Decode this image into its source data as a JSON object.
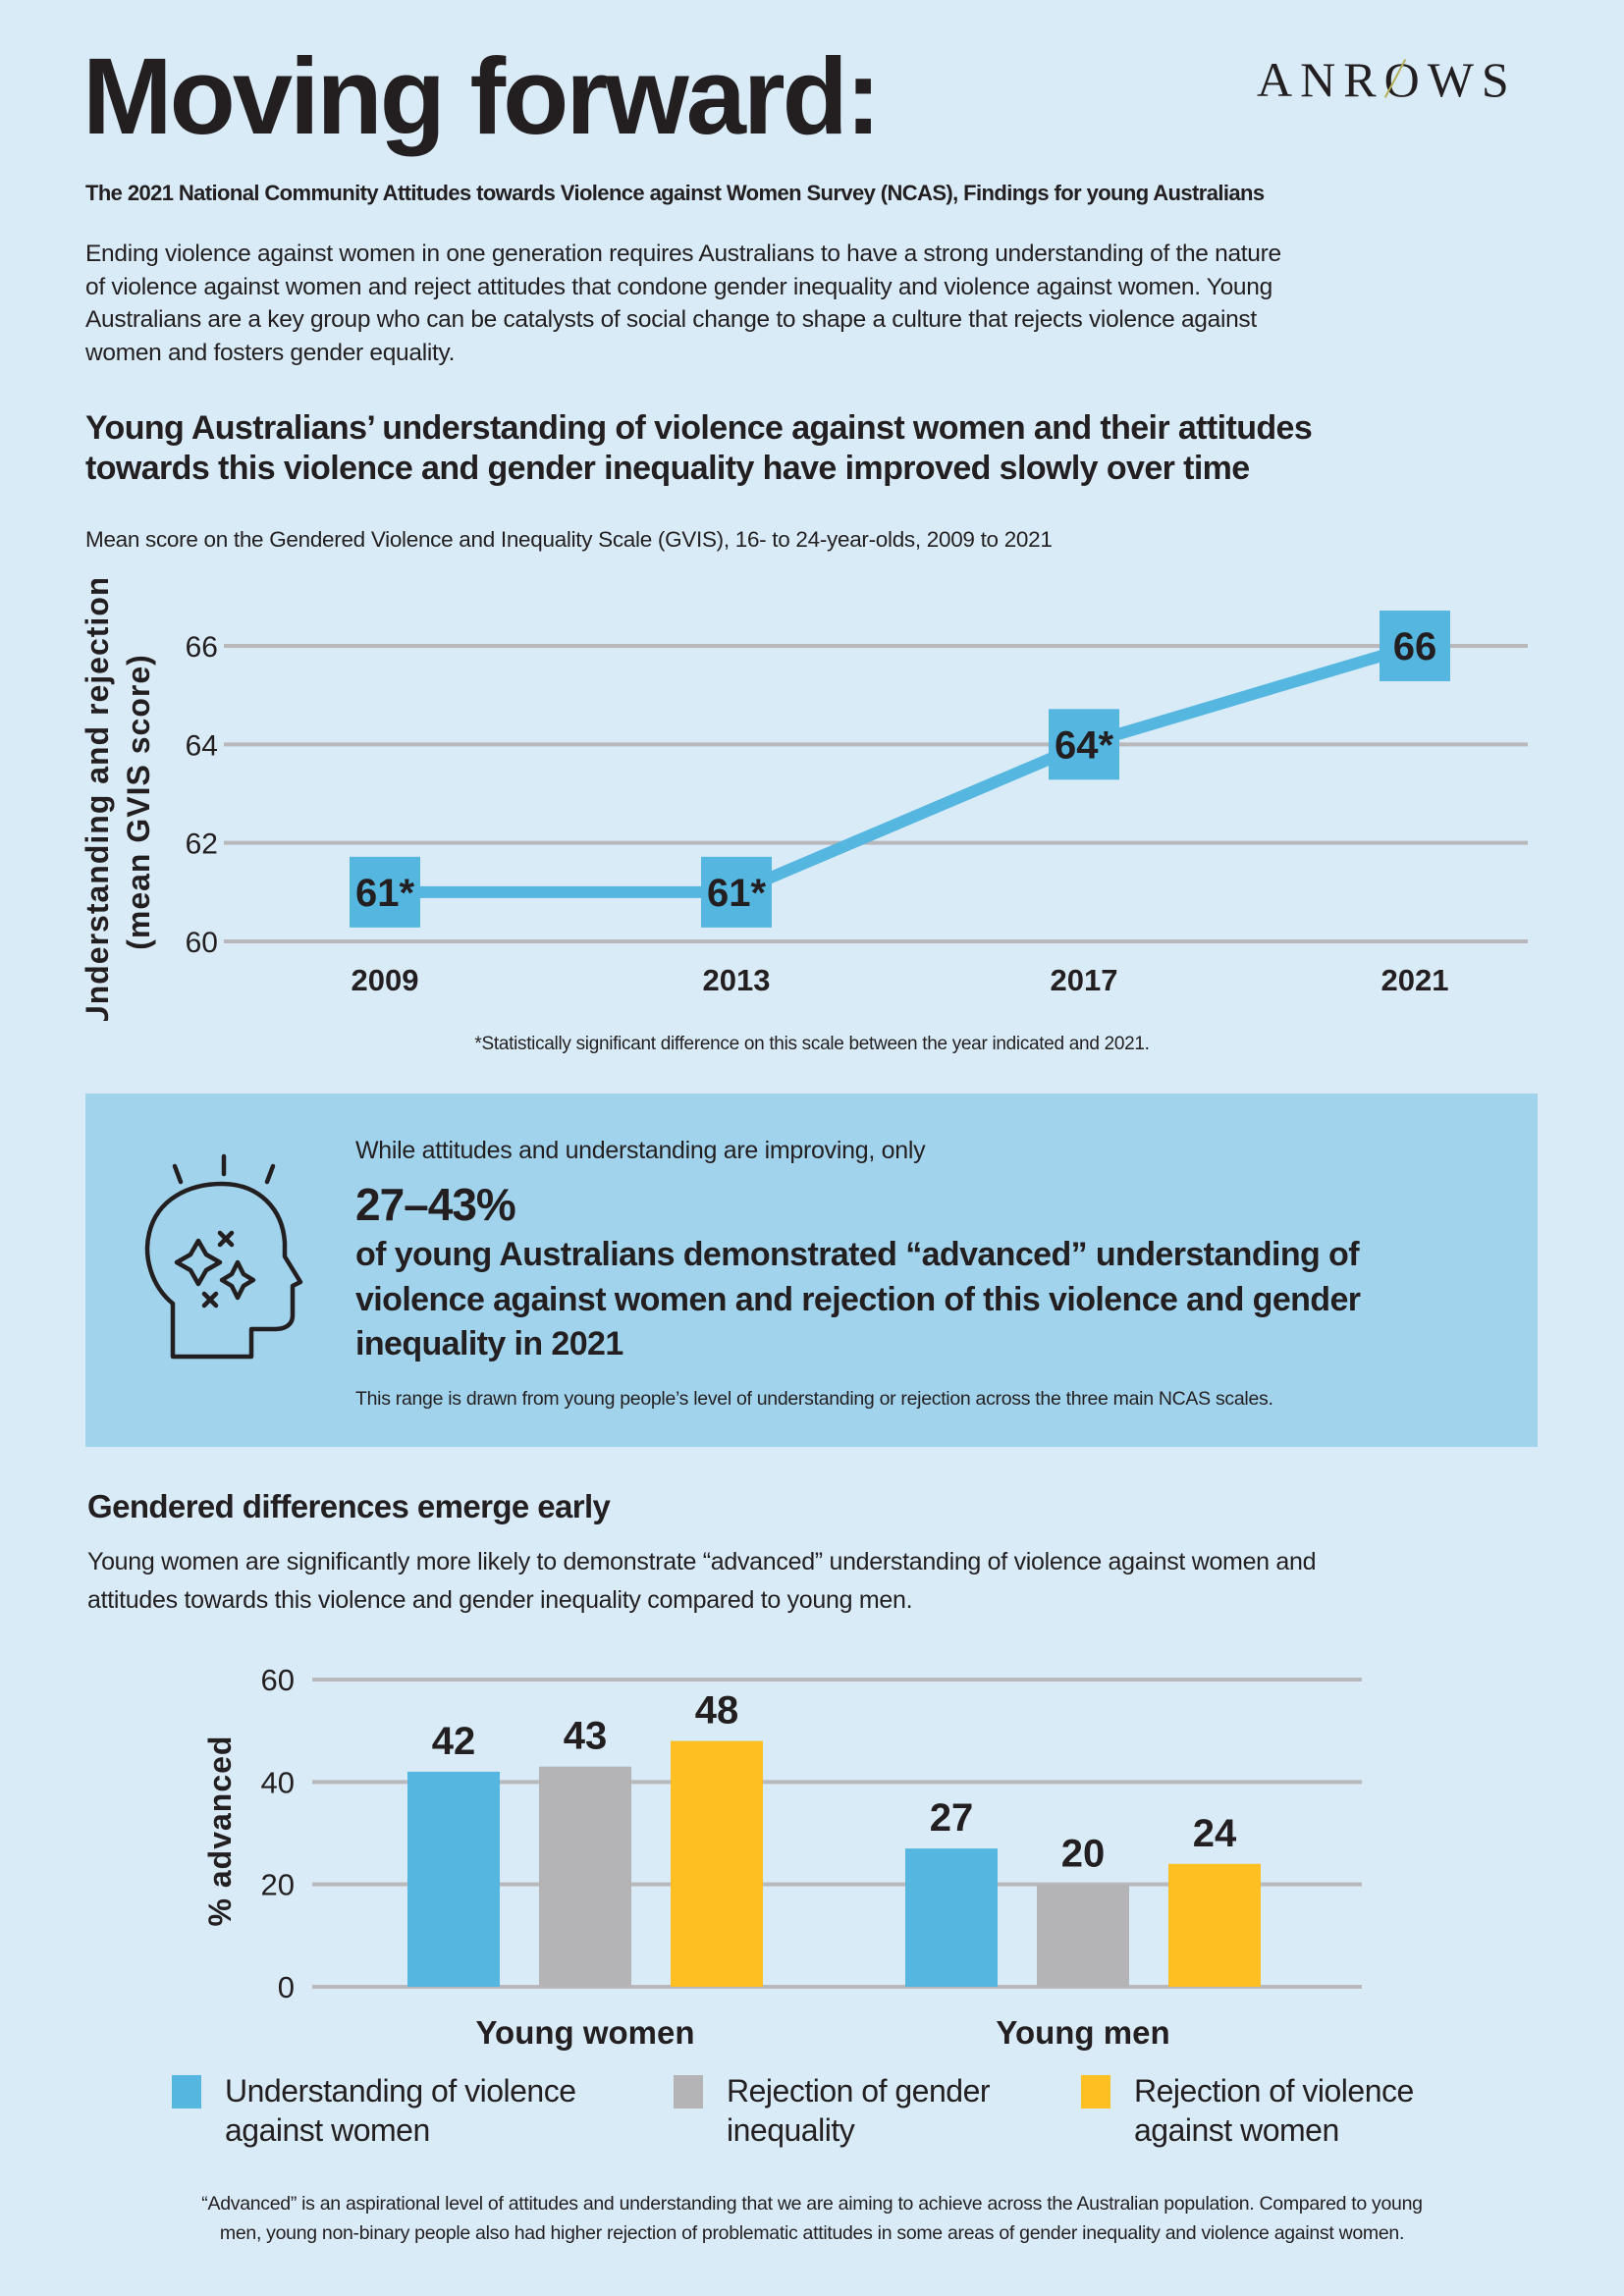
{
  "header": {
    "title": "Moving forward:",
    "logo": "ANROWS",
    "subtitle": "The 2021 National Community Attitudes towards Violence against Women Survey (NCAS), Findings for young Australians",
    "intro_lines": [
      "Ending violence against women in one generation requires Australians to have a strong understanding of the nature",
      "of violence against women and reject attitudes that condone gender inequality and violence against women. Young",
      "Australians are a key group who can be catalysts of social change to shape a culture that rejects violence against",
      "women and fosters gender equality."
    ]
  },
  "section1": {
    "heading_lines": [
      "Young Australians’ understanding of violence against women and their attitudes",
      "towards this violence and gender inequality have improved slowly over time"
    ],
    "chart_caption": "Mean score on the Gendered Violence and Inequality Scale (GVIS), 16- to 24-year-olds, 2009 to 2021",
    "footnote": "*Statistically significant difference on this scale between the year indicated and 2021."
  },
  "callout": {
    "icon": "head-sparkles-icon",
    "lead": "While attitudes and understanding are improving, only",
    "big_number": "27–43%",
    "body_lines": [
      "of young Australians demonstrated “advanced” understanding of",
      "violence against women and rejection of this violence and gender",
      "inequality in 2021"
    ],
    "note": "This range is drawn from young people’s level of understanding or rejection across the three main NCAS scales."
  },
  "section2": {
    "heading": "Gendered differences emerge early",
    "para_lines": [
      "Young women are significantly more likely to demonstrate “advanced” understanding of violence against women and",
      "attitudes towards this violence and gender inequality compared to young men."
    ],
    "footnote_lines": [
      "“Advanced” is an aspirational level of attitudes and understanding that we are aiming to achieve across the Australian population. Compared to young",
      "men, young non-binary people also had higher rejection of problematic attitudes in some areas of gender inequality and violence against women."
    ]
  },
  "colors": {
    "background": "#d8ebf7",
    "callout": "#a2d3ec",
    "blue": "#55b6e0",
    "grey": "#b4b4b7",
    "yellow": "#fdbf22",
    "grid": "#b9b9bc"
  },
  "chart_data": [
    {
      "type": "line",
      "x": [
        "2009",
        "2013",
        "2017",
        "2021"
      ],
      "values": [
        61,
        61,
        64,
        66
      ],
      "data_labels": [
        "61*",
        "61*",
        "64*",
        "66"
      ],
      "ylabel_lines": [
        "Understanding and rejection",
        "(mean GVIS score)"
      ],
      "ylim": [
        60,
        66
      ],
      "yticks": [
        60,
        62,
        64,
        66
      ],
      "grid": true,
      "color": "#55b6e0"
    },
    {
      "type": "bar",
      "categories": [
        "Young women",
        "Young men"
      ],
      "series": [
        {
          "name": "Understanding of violence against women",
          "name_lines": [
            "Understanding of violence",
            "against women"
          ],
          "values": [
            42,
            27
          ],
          "color": "#55b6e0"
        },
        {
          "name": "Rejection of gender inequality",
          "name_lines": [
            "Rejection of gender",
            "inequality"
          ],
          "values": [
            43,
            20
          ],
          "color": "#b4b4b7"
        },
        {
          "name": "Rejection of violence against women",
          "name_lines": [
            "Rejection of violence",
            "against women"
          ],
          "values": [
            48,
            24
          ],
          "color": "#fdbf22"
        }
      ],
      "ylabel": "% advanced",
      "ylim": [
        0,
        60
      ],
      "yticks": [
        0,
        20,
        40,
        60
      ],
      "grid": true,
      "legend": "bottom"
    }
  ]
}
